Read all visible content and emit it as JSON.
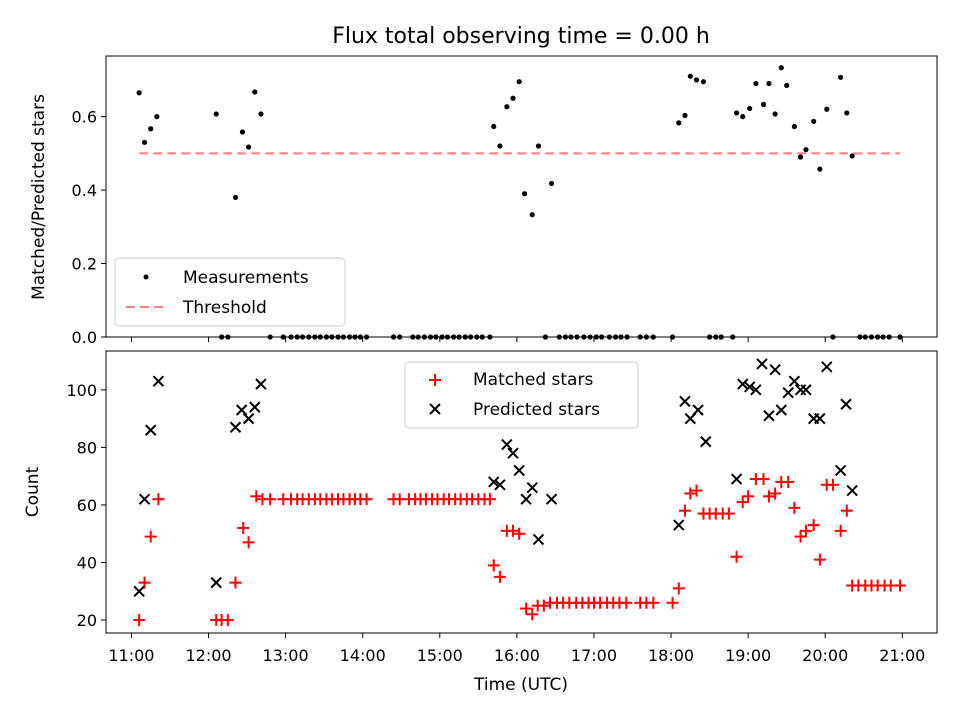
{
  "chart_data": [
    {
      "type": "scatter",
      "title": "Flux total observing time = 0.00 h",
      "xlabel": "",
      "ylabel": "Matched/Predicted stars",
      "xlim": [
        10.67,
        21.45
      ],
      "ylim": [
        0,
        0.765
      ],
      "yticks": [
        "0.0",
        "0.2",
        "0.4",
        "0.6"
      ],
      "ytick_values": [
        0,
        0.2,
        0.4,
        0.6
      ],
      "xticks_hours": [
        11,
        12,
        13,
        14,
        15,
        16,
        17,
        18,
        19,
        20,
        21
      ],
      "grid": false,
      "legend_position": "lower left",
      "legend": [
        "Measurements",
        "Threshold"
      ],
      "threshold": {
        "name": "Threshold",
        "value": 0.5,
        "x_range": [
          11.1,
          20.97
        ],
        "color": "#ff7f7f"
      },
      "series": [
        {
          "name": "Measurements",
          "color": "#000000",
          "points": [
            [
              11.1,
              0.665
            ],
            [
              11.17,
              0.53
            ],
            [
              11.25,
              0.567
            ],
            [
              11.33,
              0.6
            ],
            [
              12.1,
              0.607
            ],
            [
              12.17,
              0.0
            ],
            [
              12.25,
              0.0
            ],
            [
              12.35,
              0.38
            ],
            [
              12.44,
              0.558
            ],
            [
              12.52,
              0.517
            ],
            [
              12.6,
              0.667
            ],
            [
              12.68,
              0.607
            ],
            [
              12.8,
              0.0
            ],
            [
              12.97,
              0.0
            ],
            [
              13.07,
              0.0
            ],
            [
              13.15,
              0.0
            ],
            [
              13.22,
              0.0
            ],
            [
              13.3,
              0.0
            ],
            [
              13.38,
              0.0
            ],
            [
              13.45,
              0.0
            ],
            [
              13.53,
              0.0
            ],
            [
              13.6,
              0.0
            ],
            [
              13.68,
              0.0
            ],
            [
              13.75,
              0.0
            ],
            [
              13.83,
              0.0
            ],
            [
              13.9,
              0.0
            ],
            [
              13.97,
              0.0
            ],
            [
              14.05,
              0.0
            ],
            [
              14.4,
              0.0
            ],
            [
              14.48,
              0.0
            ],
            [
              14.65,
              0.0
            ],
            [
              14.72,
              0.0
            ],
            [
              14.8,
              0.0
            ],
            [
              14.88,
              0.0
            ],
            [
              14.95,
              0.0
            ],
            [
              15.03,
              0.0
            ],
            [
              15.1,
              0.0
            ],
            [
              15.18,
              0.0
            ],
            [
              15.25,
              0.0
            ],
            [
              15.33,
              0.0
            ],
            [
              15.4,
              0.0
            ],
            [
              15.48,
              0.0
            ],
            [
              15.55,
              0.0
            ],
            [
              15.65,
              0.0
            ],
            [
              15.7,
              0.573
            ],
            [
              15.78,
              0.52
            ],
            [
              15.87,
              0.627
            ],
            [
              15.95,
              0.65
            ],
            [
              16.03,
              0.695
            ],
            [
              16.1,
              0.39
            ],
            [
              16.2,
              0.333
            ],
            [
              16.28,
              0.52
            ],
            [
              16.37,
              0.0
            ],
            [
              16.45,
              0.418
            ],
            [
              16.55,
              0.0
            ],
            [
              16.63,
              0.0
            ],
            [
              16.7,
              0.0
            ],
            [
              16.78,
              0.0
            ],
            [
              16.87,
              0.0
            ],
            [
              16.95,
              0.0
            ],
            [
              17.03,
              0.0
            ],
            [
              17.1,
              0.0
            ],
            [
              17.2,
              0.0
            ],
            [
              17.28,
              0.0
            ],
            [
              17.35,
              0.0
            ],
            [
              17.43,
              0.0
            ],
            [
              17.6,
              0.0
            ],
            [
              17.68,
              0.0
            ],
            [
              17.77,
              0.0
            ],
            [
              18.02,
              0.0
            ],
            [
              18.1,
              0.583
            ],
            [
              18.18,
              0.603
            ],
            [
              18.25,
              0.71
            ],
            [
              18.33,
              0.7
            ],
            [
              18.42,
              0.695
            ],
            [
              18.5,
              0.0
            ],
            [
              18.58,
              0.0
            ],
            [
              18.65,
              0.0
            ],
            [
              18.8,
              0.0
            ],
            [
              18.85,
              0.61
            ],
            [
              18.93,
              0.6
            ],
            [
              19.02,
              0.622
            ],
            [
              19.1,
              0.69
            ],
            [
              19.2,
              0.633
            ],
            [
              19.27,
              0.69
            ],
            [
              19.35,
              0.607
            ],
            [
              19.43,
              0.733
            ],
            [
              19.5,
              0.685
            ],
            [
              19.6,
              0.573
            ],
            [
              19.68,
              0.49
            ],
            [
              19.75,
              0.51
            ],
            [
              19.85,
              0.587
            ],
            [
              19.93,
              0.457
            ],
            [
              20.02,
              0.62
            ],
            [
              20.1,
              0.0
            ],
            [
              20.2,
              0.707
            ],
            [
              20.28,
              0.61
            ],
            [
              20.35,
              0.493
            ],
            [
              20.45,
              0.0
            ],
            [
              20.52,
              0.0
            ],
            [
              20.6,
              0.0
            ],
            [
              20.68,
              0.0
            ],
            [
              20.75,
              0.0
            ],
            [
              20.83,
              0.0
            ],
            [
              20.97,
              0.0
            ]
          ]
        }
      ]
    },
    {
      "type": "scatter",
      "title": "",
      "xlabel": "Time (UTC)",
      "ylabel": "Count",
      "xlim": [
        10.67,
        21.45
      ],
      "ylim": [
        15.5,
        113.5
      ],
      "yticks": [
        "20",
        "40",
        "60",
        "80",
        "100"
      ],
      "ytick_values": [
        20,
        40,
        60,
        80,
        100
      ],
      "xticks": [
        "11:00",
        "12:00",
        "13:00",
        "14:00",
        "15:00",
        "16:00",
        "17:00",
        "18:00",
        "19:00",
        "20:00",
        "21:00"
      ],
      "xtick_values": [
        11,
        12,
        13,
        14,
        15,
        16,
        17,
        18,
        19,
        20,
        21
      ],
      "grid": false,
      "legend_position": "upper center",
      "legend": [
        "Matched stars",
        "Predicted stars"
      ],
      "series": [
        {
          "name": "Matched stars",
          "marker": "plus",
          "color": "#ff0000",
          "points": [
            [
              11.1,
              20
            ],
            [
              11.17,
              33
            ],
            [
              11.25,
              49
            ],
            [
              11.35,
              62
            ],
            [
              12.1,
              20
            ],
            [
              12.17,
              20
            ],
            [
              12.25,
              20
            ],
            [
              12.35,
              33
            ],
            [
              12.45,
              52
            ],
            [
              12.52,
              47
            ],
            [
              12.62,
              63
            ],
            [
              12.7,
              62
            ],
            [
              12.8,
              62
            ],
            [
              12.97,
              62
            ],
            [
              13.07,
              62
            ],
            [
              13.15,
              62
            ],
            [
              13.22,
              62
            ],
            [
              13.3,
              62
            ],
            [
              13.38,
              62
            ],
            [
              13.45,
              62
            ],
            [
              13.53,
              62
            ],
            [
              13.6,
              62
            ],
            [
              13.68,
              62
            ],
            [
              13.75,
              62
            ],
            [
              13.83,
              62
            ],
            [
              13.9,
              62
            ],
            [
              13.97,
              62
            ],
            [
              14.05,
              62
            ],
            [
              14.4,
              62
            ],
            [
              14.48,
              62
            ],
            [
              14.6,
              62
            ],
            [
              14.68,
              62
            ],
            [
              14.75,
              62
            ],
            [
              14.82,
              62
            ],
            [
              14.9,
              62
            ],
            [
              14.97,
              62
            ],
            [
              15.05,
              62
            ],
            [
              15.12,
              62
            ],
            [
              15.2,
              62
            ],
            [
              15.27,
              62
            ],
            [
              15.35,
              62
            ],
            [
              15.42,
              62
            ],
            [
              15.5,
              62
            ],
            [
              15.58,
              62
            ],
            [
              15.65,
              62
            ],
            [
              15.7,
              39
            ],
            [
              15.78,
              35
            ],
            [
              15.87,
              51
            ],
            [
              15.95,
              51
            ],
            [
              16.03,
              50
            ],
            [
              16.12,
              24
            ],
            [
              16.2,
              22
            ],
            [
              16.27,
              25
            ],
            [
              16.35,
              25
            ],
            [
              16.43,
              26
            ],
            [
              16.52,
              26
            ],
            [
              16.6,
              26
            ],
            [
              16.68,
              26
            ],
            [
              16.77,
              26
            ],
            [
              16.85,
              26
            ],
            [
              16.93,
              26
            ],
            [
              17.0,
              26
            ],
            [
              17.08,
              26
            ],
            [
              17.17,
              26
            ],
            [
              17.25,
              26
            ],
            [
              17.33,
              26
            ],
            [
              17.42,
              26
            ],
            [
              17.6,
              26
            ],
            [
              17.68,
              26
            ],
            [
              17.77,
              26
            ],
            [
              18.02,
              26
            ],
            [
              18.1,
              31
            ],
            [
              18.18,
              58
            ],
            [
              18.25,
              64
            ],
            [
              18.33,
              65
            ],
            [
              18.42,
              57
            ],
            [
              18.5,
              57
            ],
            [
              18.58,
              57
            ],
            [
              18.67,
              57
            ],
            [
              18.75,
              57
            ],
            [
              18.85,
              42
            ],
            [
              18.93,
              61
            ],
            [
              19.0,
              63
            ],
            [
              19.1,
              69
            ],
            [
              19.2,
              69
            ],
            [
              19.27,
              63
            ],
            [
              19.35,
              64
            ],
            [
              19.43,
              68
            ],
            [
              19.52,
              68
            ],
            [
              19.6,
              59
            ],
            [
              19.68,
              49
            ],
            [
              19.75,
              51
            ],
            [
              19.85,
              53
            ],
            [
              19.93,
              41
            ],
            [
              20.02,
              67
            ],
            [
              20.1,
              67
            ],
            [
              20.2,
              51
            ],
            [
              20.28,
              58
            ],
            [
              20.35,
              32
            ],
            [
              20.43,
              32
            ],
            [
              20.52,
              32
            ],
            [
              20.6,
              32
            ],
            [
              20.68,
              32
            ],
            [
              20.77,
              32
            ],
            [
              20.85,
              32
            ],
            [
              20.97,
              32
            ]
          ]
        },
        {
          "name": "Predicted stars",
          "marker": "x",
          "color": "#000000",
          "points": [
            [
              11.1,
              30
            ],
            [
              11.17,
              62
            ],
            [
              11.25,
              86
            ],
            [
              11.35,
              103
            ],
            [
              12.1,
              33
            ],
            [
              12.35,
              87
            ],
            [
              12.43,
              93
            ],
            [
              12.52,
              90
            ],
            [
              12.6,
              94
            ],
            [
              12.68,
              102
            ],
            [
              15.7,
              68
            ],
            [
              15.78,
              67
            ],
            [
              15.87,
              81
            ],
            [
              15.95,
              78
            ],
            [
              16.03,
              72
            ],
            [
              16.12,
              62
            ],
            [
              16.2,
              66
            ],
            [
              16.28,
              48
            ],
            [
              16.45,
              62
            ],
            [
              18.1,
              53
            ],
            [
              18.18,
              96
            ],
            [
              18.25,
              90
            ],
            [
              18.35,
              93
            ],
            [
              18.45,
              82
            ],
            [
              18.85,
              69
            ],
            [
              18.93,
              102
            ],
            [
              19.02,
              101
            ],
            [
              19.1,
              100
            ],
            [
              19.18,
              109
            ],
            [
              19.27,
              91
            ],
            [
              19.35,
              107
            ],
            [
              19.43,
              93
            ],
            [
              19.52,
              99
            ],
            [
              19.6,
              103
            ],
            [
              19.68,
              100
            ],
            [
              19.75,
              100
            ],
            [
              19.85,
              90
            ],
            [
              19.93,
              90
            ],
            [
              20.02,
              108
            ],
            [
              20.2,
              72
            ],
            [
              20.27,
              95
            ],
            [
              20.35,
              65
            ]
          ]
        }
      ]
    }
  ]
}
